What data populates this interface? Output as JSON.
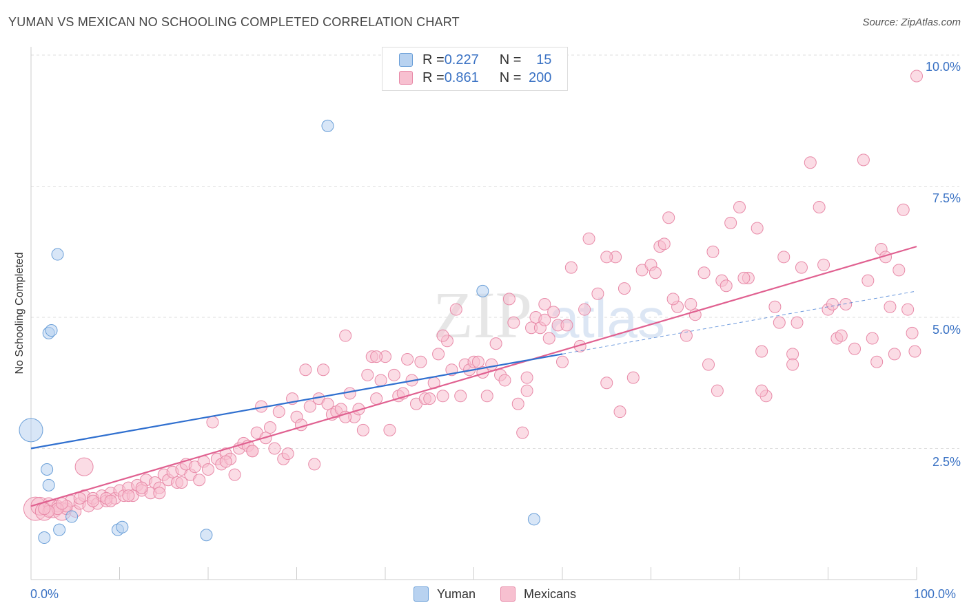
{
  "title": "YUMAN VS MEXICAN NO SCHOOLING COMPLETED CORRELATION CHART",
  "source": "Source: ZipAtlas.com",
  "watermark": {
    "a": "ZIP",
    "b": "atlas"
  },
  "legend_top": {
    "rows": [
      {
        "r_label": "R = ",
        "r_value": "0.227",
        "n_label": "N = ",
        "n_value": "15"
      },
      {
        "r_label": "R = ",
        "r_value": "0.861",
        "n_label": "N = ",
        "n_value": "200"
      }
    ]
  },
  "legend_bottom": {
    "yuman": "Yuman",
    "mexicans": "Mexicans"
  },
  "colors": {
    "yuman_fill": "#b8d2f0",
    "yuman_stroke": "#6a9fd8",
    "yuman_line": "#2f6fcf",
    "mex_fill": "#f7c0d0",
    "mex_stroke": "#e88aa8",
    "mex_line": "#e06090",
    "tick_text": "#3a72c4",
    "grid": "#dddddd"
  },
  "chart_data": {
    "type": "scatter",
    "title": "YUMAN VS MEXICAN NO SCHOOLING COMPLETED CORRELATION CHART",
    "xlabel": "",
    "ylabel": "No Schooling Completed",
    "xlim": [
      0,
      100
    ],
    "ylim": [
      0,
      10.3
    ],
    "x_tick_labels": [
      "0.0%",
      "100.0%"
    ],
    "y_ticks": [
      2.5,
      5.0,
      7.5,
      10.0
    ],
    "y_tick_labels": [
      "2.5%",
      "5.0%",
      "7.5%",
      "10.0%"
    ],
    "grid": true,
    "legend": "top-center",
    "series": [
      {
        "name": "Yuman",
        "r": 0.227,
        "n": 15,
        "trend": {
          "x": [
            0,
            60
          ],
          "y": [
            2.5,
            4.3
          ]
        },
        "trend_dashed": {
          "x": [
            60,
            100
          ],
          "y": [
            4.3,
            5.5
          ]
        },
        "points": [
          [
            0.0,
            2.85,
            3
          ],
          [
            1.5,
            0.8,
            1
          ],
          [
            2.0,
            1.8,
            1
          ],
          [
            1.8,
            2.1,
            1
          ],
          [
            3.0,
            6.2,
            1
          ],
          [
            2.0,
            4.7,
            1
          ],
          [
            2.3,
            4.75,
            1
          ],
          [
            3.2,
            0.95,
            1
          ],
          [
            4.6,
            1.2,
            1
          ],
          [
            9.8,
            0.95,
            1
          ],
          [
            10.3,
            1.0,
            1
          ],
          [
            19.8,
            0.85,
            1
          ],
          [
            33.5,
            8.65,
            1
          ],
          [
            51.0,
            5.5,
            1
          ],
          [
            56.8,
            1.15,
            1
          ]
        ]
      },
      {
        "name": "Mexicans",
        "r": 0.861,
        "n": 200,
        "trend": {
          "x": [
            0,
            100
          ],
          "y": [
            1.4,
            6.35
          ]
        },
        "points": [
          [
            0.5,
            1.35,
            3
          ],
          [
            1.0,
            1.4,
            2
          ],
          [
            1.5,
            1.3,
            2
          ],
          [
            2.0,
            1.45,
            1
          ],
          [
            2.5,
            1.35,
            2
          ],
          [
            3.0,
            1.4,
            1
          ],
          [
            3.5,
            1.3,
            2
          ],
          [
            4.0,
            1.35,
            1
          ],
          [
            4.5,
            1.5,
            1
          ],
          [
            5.0,
            1.3,
            1
          ],
          [
            5.5,
            1.45,
            1
          ],
          [
            6.0,
            1.6,
            1
          ],
          [
            6.5,
            1.4,
            1
          ],
          [
            7.0,
            1.55,
            1
          ],
          [
            7.5,
            1.45,
            1
          ],
          [
            8.0,
            1.6,
            1
          ],
          [
            8.5,
            1.5,
            1
          ],
          [
            9.0,
            1.65,
            1
          ],
          [
            9.5,
            1.55,
            1
          ],
          [
            10.0,
            1.7,
            1
          ],
          [
            10.5,
            1.6,
            1
          ],
          [
            11.0,
            1.75,
            1
          ],
          [
            11.5,
            1.6,
            1
          ],
          [
            12.0,
            1.8,
            1
          ],
          [
            12.5,
            1.7,
            1
          ],
          [
            13.0,
            1.9,
            1
          ],
          [
            13.5,
            1.65,
            1
          ],
          [
            14.0,
            1.85,
            1
          ],
          [
            14.5,
            1.75,
            1
          ],
          [
            15.0,
            2.0,
            1
          ],
          [
            15.5,
            1.9,
            1
          ],
          [
            16.0,
            2.05,
            1
          ],
          [
            16.5,
            1.85,
            1
          ],
          [
            17.0,
            2.1,
            1
          ],
          [
            17.5,
            2.2,
            1
          ],
          [
            18.0,
            2.0,
            1
          ],
          [
            18.5,
            2.15,
            1
          ],
          [
            19.0,
            1.9,
            1
          ],
          [
            19.5,
            2.25,
            1
          ],
          [
            20.0,
            2.1,
            1
          ],
          [
            20.5,
            3.0,
            1
          ],
          [
            21.0,
            2.3,
            1
          ],
          [
            21.5,
            2.2,
            1
          ],
          [
            22.0,
            2.4,
            1
          ],
          [
            22.5,
            2.3,
            1
          ],
          [
            23.0,
            2.0,
            1
          ],
          [
            23.5,
            2.5,
            1
          ],
          [
            24.0,
            2.6,
            1
          ],
          [
            24.5,
            2.55,
            1
          ],
          [
            25.0,
            2.45,
            1
          ],
          [
            25.5,
            2.8,
            1
          ],
          [
            26.0,
            3.3,
            1
          ],
          [
            26.5,
            2.7,
            1
          ],
          [
            27.0,
            2.9,
            1
          ],
          [
            27.5,
            2.5,
            1
          ],
          [
            28.0,
            3.2,
            1
          ],
          [
            28.5,
            2.3,
            1
          ],
          [
            29.0,
            2.4,
            1
          ],
          [
            29.5,
            3.45,
            1
          ],
          [
            30.0,
            3.1,
            1
          ],
          [
            30.5,
            2.95,
            1
          ],
          [
            31.0,
            4.0,
            1
          ],
          [
            31.5,
            3.3,
            1
          ],
          [
            32.0,
            2.2,
            1
          ],
          [
            32.5,
            3.45,
            1
          ],
          [
            33.0,
            4.0,
            1
          ],
          [
            33.5,
            3.35,
            1
          ],
          [
            34.0,
            3.15,
            1
          ],
          [
            34.5,
            3.2,
            1
          ],
          [
            35.0,
            3.25,
            1
          ],
          [
            35.5,
            4.65,
            1
          ],
          [
            36.0,
            3.55,
            1
          ],
          [
            36.5,
            3.1,
            1
          ],
          [
            37.0,
            3.25,
            1
          ],
          [
            37.5,
            2.85,
            1
          ],
          [
            38.0,
            3.9,
            1
          ],
          [
            38.5,
            4.25,
            1
          ],
          [
            39.0,
            3.45,
            1
          ],
          [
            39.5,
            3.8,
            1
          ],
          [
            40.0,
            4.25,
            1
          ],
          [
            40.5,
            2.85,
            1
          ],
          [
            41.0,
            3.9,
            1
          ],
          [
            41.5,
            3.5,
            1
          ],
          [
            42.0,
            3.55,
            1
          ],
          [
            42.5,
            4.2,
            1
          ],
          [
            43.0,
            3.8,
            1
          ],
          [
            43.5,
            3.35,
            1
          ],
          [
            44.0,
            4.15,
            1
          ],
          [
            44.5,
            3.45,
            1
          ],
          [
            45.0,
            3.45,
            1
          ],
          [
            45.5,
            3.75,
            1
          ],
          [
            46.0,
            4.3,
            1
          ],
          [
            46.5,
            3.5,
            1
          ],
          [
            47.0,
            4.55,
            1
          ],
          [
            47.5,
            4.0,
            1
          ],
          [
            48.0,
            5.15,
            1
          ],
          [
            48.5,
            3.5,
            1
          ],
          [
            49.0,
            4.1,
            1
          ],
          [
            49.5,
            4.0,
            1
          ],
          [
            50.0,
            4.15,
            1
          ],
          [
            50.5,
            4.15,
            1
          ],
          [
            51.0,
            3.95,
            1
          ],
          [
            51.5,
            3.5,
            1
          ],
          [
            52.0,
            4.1,
            1
          ],
          [
            52.5,
            4.5,
            1
          ],
          [
            53.0,
            3.9,
            1
          ],
          [
            53.5,
            3.8,
            1
          ],
          [
            54.0,
            5.35,
            1
          ],
          [
            54.5,
            4.9,
            1
          ],
          [
            55.0,
            3.35,
            1
          ],
          [
            55.5,
            2.8,
            1
          ],
          [
            56.0,
            3.6,
            1
          ],
          [
            56.5,
            4.8,
            1
          ],
          [
            57.0,
            5.0,
            1
          ],
          [
            57.5,
            4.8,
            1
          ],
          [
            58.0,
            5.25,
            1
          ],
          [
            58.5,
            4.6,
            1
          ],
          [
            59.0,
            5.1,
            1
          ],
          [
            59.5,
            4.85,
            1
          ],
          [
            60.0,
            4.15,
            1
          ],
          [
            61.0,
            5.95,
            1
          ],
          [
            62.0,
            4.45,
            1
          ],
          [
            63.0,
            6.5,
            1
          ],
          [
            64.0,
            5.45,
            1
          ],
          [
            65.0,
            3.75,
            1
          ],
          [
            66.0,
            6.15,
            1
          ],
          [
            67.0,
            5.55,
            1
          ],
          [
            68.0,
            3.85,
            1
          ],
          [
            69.0,
            5.9,
            1
          ],
          [
            70.0,
            6.0,
            1
          ],
          [
            71.0,
            6.35,
            1
          ],
          [
            72.0,
            6.9,
            1
          ],
          [
            73.0,
            5.2,
            1
          ],
          [
            74.0,
            4.65,
            1
          ],
          [
            75.0,
            5.05,
            1
          ],
          [
            76.0,
            5.85,
            1
          ],
          [
            77.0,
            6.25,
            1
          ],
          [
            78.0,
            5.7,
            1
          ],
          [
            79.0,
            6.8,
            1
          ],
          [
            80.0,
            7.1,
            1
          ],
          [
            81.0,
            5.75,
            1
          ],
          [
            82.0,
            6.7,
            1
          ],
          [
            83.0,
            3.5,
            1
          ],
          [
            84.0,
            5.2,
            1
          ],
          [
            85.0,
            6.15,
            1
          ],
          [
            86.0,
            4.3,
            1
          ],
          [
            87.0,
            5.95,
            1
          ],
          [
            88.0,
            7.95,
            1
          ],
          [
            89.0,
            7.1,
            1
          ],
          [
            90.0,
            5.15,
            1
          ],
          [
            91.0,
            4.6,
            1
          ],
          [
            92.0,
            5.25,
            1
          ],
          [
            93.0,
            4.4,
            1
          ],
          [
            94.0,
            8.0,
            1
          ],
          [
            95.0,
            4.6,
            1
          ],
          [
            96.0,
            6.3,
            1
          ],
          [
            97.0,
            5.2,
            1
          ],
          [
            98.0,
            5.9,
            1
          ],
          [
            99.0,
            5.15,
            1
          ],
          [
            100.0,
            9.6,
            1
          ],
          [
            56.0,
            3.85,
            1
          ],
          [
            62.5,
            5.15,
            1
          ],
          [
            66.5,
            3.2,
            1
          ],
          [
            70.5,
            5.85,
            1
          ],
          [
            74.5,
            5.25,
            1
          ],
          [
            76.5,
            4.1,
            1
          ],
          [
            80.5,
            5.75,
            1
          ],
          [
            84.5,
            4.9,
            1
          ],
          [
            86.5,
            4.9,
            1
          ],
          [
            89.5,
            6.0,
            1
          ],
          [
            91.5,
            4.65,
            1
          ],
          [
            94.5,
            5.7,
            1
          ],
          [
            96.5,
            6.15,
            1
          ],
          [
            97.5,
            4.3,
            1
          ],
          [
            98.5,
            7.05,
            1
          ],
          [
            99.5,
            4.7,
            1
          ],
          [
            77.5,
            3.6,
            1
          ],
          [
            82.5,
            3.6,
            1
          ],
          [
            86.0,
            4.1,
            1
          ],
          [
            90.5,
            5.25,
            1
          ],
          [
            95.5,
            4.15,
            1
          ],
          [
            99.8,
            4.35,
            1
          ],
          [
            65.0,
            6.15,
            1
          ],
          [
            71.5,
            6.4,
            1
          ],
          [
            78.5,
            5.6,
            1
          ],
          [
            82.5,
            4.35,
            1
          ],
          [
            72.5,
            5.35,
            1
          ],
          [
            60.5,
            4.85,
            1
          ],
          [
            58.0,
            4.95,
            1
          ],
          [
            46.5,
            4.65,
            1
          ],
          [
            39.0,
            4.25,
            1
          ],
          [
            35.5,
            3.1,
            1
          ],
          [
            25.0,
            2.45,
            1
          ],
          [
            22.0,
            2.25,
            1
          ],
          [
            17.0,
            1.85,
            1
          ],
          [
            14.5,
            1.65,
            1
          ],
          [
            12.5,
            1.75,
            1
          ],
          [
            11.0,
            1.6,
            1
          ],
          [
            8.5,
            1.55,
            1
          ],
          [
            7.0,
            1.5,
            1
          ],
          [
            5.5,
            1.55,
            1
          ],
          [
            4.0,
            1.4,
            1
          ],
          [
            3.0,
            1.35,
            1
          ],
          [
            2.0,
            1.3,
            1
          ],
          [
            1.5,
            1.35,
            1
          ],
          [
            6.0,
            2.15,
            2
          ],
          [
            3.5,
            1.45,
            1
          ],
          [
            9.0,
            1.5,
            1
          ]
        ]
      }
    ]
  }
}
